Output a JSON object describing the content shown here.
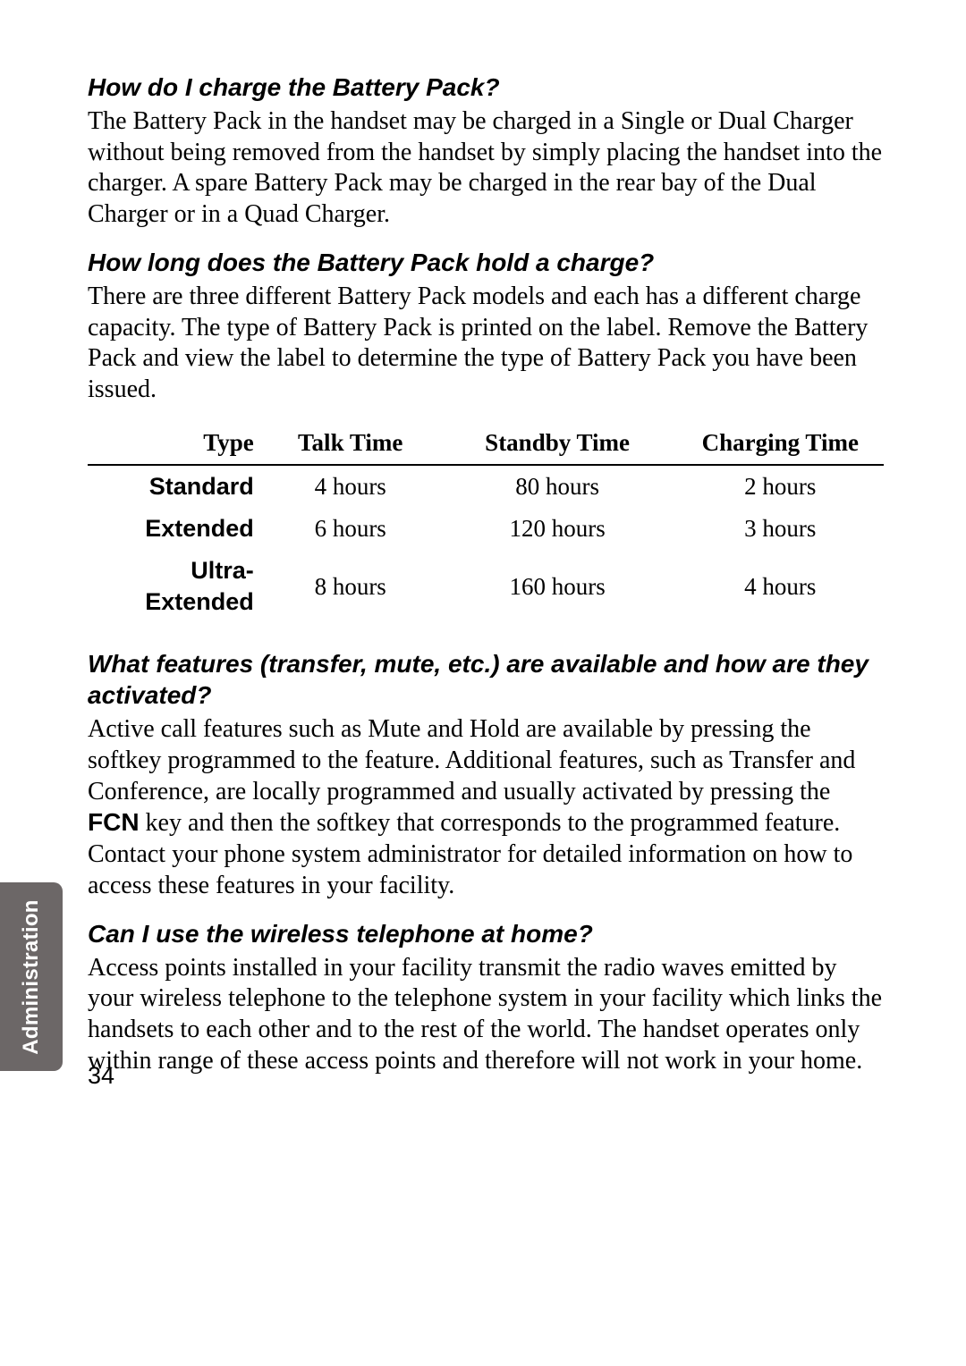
{
  "page_number": "34",
  "side_tab": "Administration",
  "sections": {
    "q1": {
      "heading": "How do I charge the Battery Pack?",
      "body": "The Battery Pack in the handset may be charged in a Single or Dual Charger without being removed from the handset by simply placing the handset into the charger. A spare Battery Pack may be charged in the rear bay of the Dual Charger or in a Quad Charger."
    },
    "q2": {
      "heading": "How long does the Battery Pack hold a charge?",
      "body": "There are three different Battery Pack models and each has a different charge capacity. The type of Battery Pack is printed on the label. Remove the Battery Pack and view the label to determine the type of Battery Pack you have been issued."
    },
    "q3": {
      "heading": "What features (transfer, mute, etc.) are available and how are they activated?",
      "body_pre": "Active call features such as Mute and Hold are available by pressing the softkey programmed to the feature. Additional features, such as Transfer and Conference, are locally programmed and usually activated by pressing the ",
      "fcn": "FCN",
      "body_post": " key and then the softkey that corresponds to the programmed feature. Contact your phone system administrator for detailed information on how to access these features in your facility."
    },
    "q4": {
      "heading": "Can I use the wireless telephone at home?",
      "body": "Access points installed in your facility transmit the radio waves emitted by your wireless telephone to the telephone system in your facility which links the handsets to each other and to the rest of the world. The handset operates only within range of these access points and therefore will not work in your home."
    }
  },
  "table": {
    "columns": [
      "Type",
      "Talk Time",
      "Standby Time",
      "Charging Time"
    ],
    "rows": [
      [
        "Standard",
        "4 hours",
        "80 hours",
        "2 hours"
      ],
      [
        "Extended",
        "6 hours",
        "120 hours",
        "3 hours"
      ],
      [
        "Ultra-Extended",
        "8 hours",
        "160 hours",
        "4 hours"
      ]
    ],
    "header_font": "serif-bold",
    "type_col_font": "sans-bold",
    "border_color": "#000000",
    "font_size": 27
  },
  "colors": {
    "background": "#ffffff",
    "text": "#000000",
    "tab_bg": "#6c6767",
    "tab_text": "#ffffff"
  },
  "typography": {
    "heading_family": "Arial",
    "heading_style": "bold italic",
    "heading_size": 28,
    "body_family": "Georgia serif",
    "body_size": 28,
    "line_height": 1.24
  }
}
